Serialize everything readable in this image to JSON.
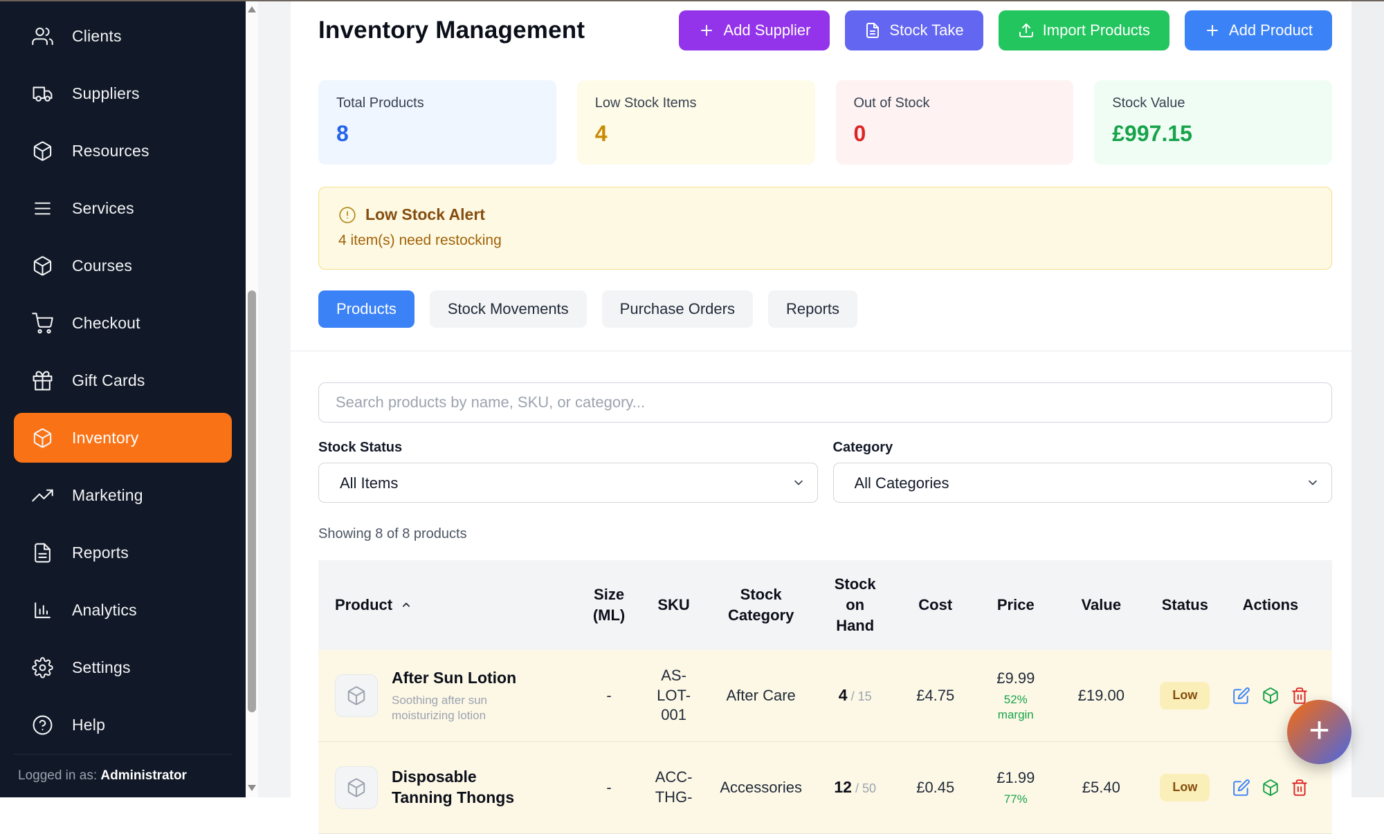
{
  "sidebar": {
    "items": [
      {
        "label": "Clients",
        "icon": "users"
      },
      {
        "label": "Suppliers",
        "icon": "truck"
      },
      {
        "label": "Resources",
        "icon": "package"
      },
      {
        "label": "Services",
        "icon": "list"
      },
      {
        "label": "Courses",
        "icon": "package"
      },
      {
        "label": "Checkout",
        "icon": "cart"
      },
      {
        "label": "Gift Cards",
        "icon": "gift"
      },
      {
        "label": "Inventory",
        "icon": "package",
        "active": true
      },
      {
        "label": "Marketing",
        "icon": "trending-up"
      },
      {
        "label": "Reports",
        "icon": "file-text"
      },
      {
        "label": "Analytics",
        "icon": "bar-chart"
      },
      {
        "label": "Settings",
        "icon": "gear"
      },
      {
        "label": "Help",
        "icon": "help-circle"
      }
    ],
    "active_color": "#f97316",
    "logged_in_prefix": "Logged in as:",
    "logged_in_user": "Administrator"
  },
  "header": {
    "title": "Inventory Management",
    "buttons": [
      {
        "label": "Add Supplier",
        "icon": "plus",
        "color": "#9333ea"
      },
      {
        "label": "Stock Take",
        "icon": "file",
        "color": "#6366f1"
      },
      {
        "label": "Import Products",
        "icon": "upload",
        "color": "#22c55e"
      },
      {
        "label": "Add Product",
        "icon": "plus",
        "color": "#3b82f6"
      }
    ]
  },
  "stats": [
    {
      "label": "Total Products",
      "value": "8",
      "bg": "#eff6ff",
      "color": "#2563eb"
    },
    {
      "label": "Low Stock Items",
      "value": "4",
      "bg": "#fefce8",
      "color": "#ca8a04"
    },
    {
      "label": "Out of Stock",
      "value": "0",
      "bg": "#fef2f2",
      "color": "#dc2626"
    },
    {
      "label": "Stock Value",
      "value": "£997.15",
      "bg": "#f0fdf4",
      "color": "#16a34a"
    }
  ],
  "alert": {
    "title": "Low Stock Alert",
    "message": "4 item(s) need restocking"
  },
  "tabs": [
    {
      "label": "Products",
      "active": true
    },
    {
      "label": "Stock Movements",
      "active": false
    },
    {
      "label": "Purchase Orders",
      "active": false
    },
    {
      "label": "Reports",
      "active": false
    }
  ],
  "filters": {
    "search_placeholder": "Search products by name, SKU, or category...",
    "stock_status_label": "Stock Status",
    "stock_status_value": "All Items",
    "category_label": "Category",
    "category_value": "All Categories"
  },
  "results_summary": "Showing 8 of 8 products",
  "table": {
    "columns": [
      "Product",
      "Size (ML)",
      "SKU",
      "Stock Category",
      "Stock on Hand",
      "Cost",
      "Price",
      "Value",
      "Status",
      "Actions"
    ],
    "sorted_column": "Product",
    "rows": [
      {
        "name": "After Sun Lotion",
        "description": "Soothing after sun moisturizing lotion",
        "size": "-",
        "sku": "AS-LOT-001",
        "category": "After Care",
        "stock_on_hand": "4",
        "stock_max": " / 15",
        "cost": "£4.75",
        "price": "£9.99",
        "margin": "52% margin",
        "value": "£19.00",
        "status": "Low"
      },
      {
        "name": "Disposable Tanning Thongs",
        "description": "",
        "size": "-",
        "sku": "ACC-THG-",
        "category": "Accessories",
        "stock_on_hand": "12",
        "stock_max": " / 50",
        "cost": "£0.45",
        "price": "£1.99",
        "margin": "77%",
        "value": "£5.40",
        "status": "Low"
      }
    ]
  },
  "fab": {
    "label": "+"
  }
}
